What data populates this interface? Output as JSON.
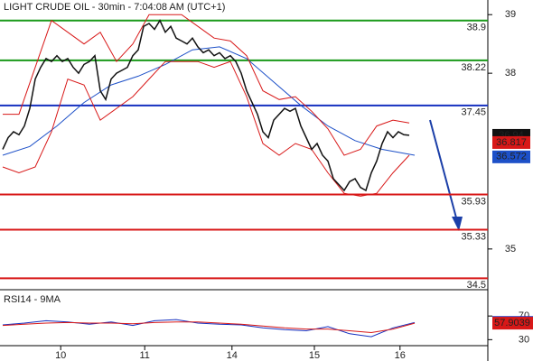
{
  "chart_data": {
    "type": "line",
    "title": "LIGHT CRUDE OIL - 30min - 7:04:08 AM (UTC+1)",
    "xlim": [
      0,
      90
    ],
    "xticks": [
      {
        "value": 10.7,
        "label": "10"
      },
      {
        "value": 26.2,
        "label": "11"
      },
      {
        "value": 42.3,
        "label": "14"
      },
      {
        "value": 57.5,
        "label": "15"
      },
      {
        "value": 73.3,
        "label": "16"
      }
    ],
    "ylim": [
      34.32,
      39.25
    ],
    "yticks": [
      39,
      38,
      35
    ],
    "levels": [
      {
        "value": 38.9,
        "color": "#1a9a1a"
      },
      {
        "value": 38.22,
        "color": "#1a9a1a"
      },
      {
        "value": 37.45,
        "color": "#1530c0"
      },
      {
        "value": 35.93,
        "color": "#d81818"
      },
      {
        "value": 35.33,
        "color": "#d81818"
      },
      {
        "value": 34.5,
        "color": "#d81818"
      }
    ],
    "price_boxes": [
      {
        "value": 36.94,
        "color": "#111111"
      },
      {
        "value": 36.817,
        "color": "#d81818"
      },
      {
        "value": 36.572,
        "color": "#1d50c8"
      }
    ],
    "series": [
      {
        "color": "#111111",
        "x": [
          0,
          1,
          2,
          3,
          4,
          5,
          6,
          7,
          8,
          9,
          10,
          11,
          12,
          13,
          14,
          15,
          16,
          17,
          18,
          19,
          20,
          21,
          22,
          23,
          24,
          25,
          26,
          27,
          28,
          29,
          30,
          31,
          32,
          33,
          34,
          35,
          36,
          37,
          38,
          39,
          40,
          41,
          42,
          43,
          44,
          45,
          46,
          47,
          48,
          49,
          50,
          51,
          52,
          53,
          54,
          55,
          56,
          57,
          58,
          59,
          60,
          61,
          62,
          63,
          64,
          65,
          66,
          67,
          68,
          69,
          70,
          71,
          72,
          73,
          74,
          75
        ],
        "values": [
          36.7,
          36.9,
          37.0,
          36.95,
          37.1,
          37.4,
          37.9,
          38.1,
          38.25,
          38.2,
          38.3,
          38.2,
          38.25,
          38.1,
          38.0,
          38.15,
          38.2,
          38.3,
          37.7,
          37.55,
          37.9,
          38.0,
          38.05,
          38.1,
          38.3,
          38.4,
          38.8,
          38.85,
          38.75,
          38.9,
          38.7,
          38.8,
          38.6,
          38.55,
          38.5,
          38.6,
          38.45,
          38.35,
          38.4,
          38.3,
          38.35,
          38.25,
          38.3,
          38.2,
          38.0,
          37.7,
          37.5,
          37.3,
          37.0,
          36.9,
          37.2,
          37.3,
          37.4,
          37.35,
          37.4,
          37.1,
          36.9,
          36.7,
          36.8,
          36.6,
          36.5,
          36.2,
          36.1,
          36.0,
          36.15,
          36.2,
          36.05,
          36.0,
          36.3,
          36.5,
          36.8,
          37.0,
          36.9,
          37.0,
          36.95,
          36.94
        ]
      },
      {
        "color": "#1d50c8",
        "x": [
          0,
          5,
          10,
          15,
          20,
          25,
          30,
          35,
          40,
          45,
          50,
          55,
          60,
          65,
          70,
          76
        ],
        "values": [
          36.6,
          36.75,
          37.1,
          37.5,
          37.8,
          37.95,
          38.15,
          38.4,
          38.45,
          38.25,
          37.85,
          37.45,
          37.1,
          36.85,
          36.7,
          36.6
        ]
      },
      {
        "color": "#d81818",
        "x": [
          0,
          3,
          6,
          9,
          12,
          15,
          18,
          21,
          24,
          27,
          30,
          33,
          36,
          39,
          42,
          45,
          48,
          51,
          54,
          57,
          60,
          63,
          66,
          69,
          72,
          75
        ],
        "values": [
          37.3,
          37.3,
          38.1,
          38.9,
          38.7,
          38.5,
          38.7,
          38.2,
          38.5,
          39.0,
          39.0,
          39.0,
          38.8,
          38.6,
          38.55,
          38.3,
          37.7,
          37.55,
          37.6,
          37.35,
          37.05,
          36.6,
          36.7,
          37.1,
          37.2,
          37.15
        ]
      },
      {
        "color": "#d81818",
        "x": [
          0,
          3,
          6,
          9,
          12,
          15,
          18,
          21,
          24,
          27,
          30,
          33,
          36,
          39,
          42,
          45,
          48,
          51,
          54,
          57,
          60,
          63,
          66,
          69,
          72,
          75
        ],
        "values": [
          36.4,
          36.3,
          36.4,
          37.0,
          37.9,
          37.8,
          37.2,
          37.4,
          37.6,
          37.9,
          38.2,
          38.2,
          38.2,
          38.1,
          38.2,
          37.6,
          36.8,
          36.6,
          36.8,
          36.7,
          36.3,
          35.95,
          35.9,
          35.95,
          36.3,
          36.6
        ]
      }
    ],
    "rsi": {
      "title": "RSI14 - 9MA",
      "ylim": [
        0,
        113
      ],
      "yticks": [
        70,
        30
      ],
      "series": [
        {
          "color": "#1530c0",
          "x": [
            0,
            4,
            8,
            12,
            16,
            20,
            24,
            28,
            32,
            36,
            40,
            44,
            48,
            52,
            56,
            60,
            64,
            68,
            72,
            76
          ],
          "values": [
            55,
            58,
            62,
            60,
            56,
            60,
            54,
            62,
            64,
            58,
            56,
            55,
            50,
            47,
            45,
            52,
            40,
            35,
            50,
            59.1245
          ]
        },
        {
          "color": "#d81818",
          "x": [
            0,
            4,
            8,
            12,
            16,
            20,
            24,
            28,
            32,
            36,
            40,
            44,
            48,
            52,
            56,
            60,
            64,
            68,
            72,
            76
          ],
          "values": [
            54,
            56,
            58,
            59,
            58,
            58,
            57,
            59,
            60,
            60,
            58,
            56,
            53,
            50,
            48,
            48,
            45,
            42,
            48,
            57.9039
          ]
        }
      ]
    }
  }
}
